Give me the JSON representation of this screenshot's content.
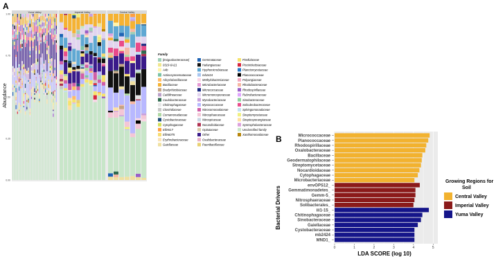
{
  "panel_a": {
    "label": "A",
    "ylabel": "Abundance",
    "yticks": [
      "0.00",
      "0.25",
      "0.50",
      "0.75",
      "1.00"
    ],
    "facets": [
      {
        "name": "Yuma Valley",
        "samples": 29
      },
      {
        "name": "Imperial Valley",
        "samples": 11
      },
      {
        "name": "Central Valley",
        "samples": 7
      }
    ],
    "legend_title": "Family",
    "legend": [
      {
        "name": "[Exiguobacteraceae]",
        "color": "#9ecfb7"
      },
      {
        "name": "0319-6A21",
        "color": "#f0e68c"
      },
      {
        "name": "A4b",
        "color": "#fff4a8"
      },
      {
        "name": "Actinosynnemataceae",
        "color": "#7ac3a5"
      },
      {
        "name": "Alicyclobacillaceae",
        "color": "#ffbb66"
      },
      {
        "name": "Bacillaceae",
        "color": "#f5b232"
      },
      {
        "name": "Bradyrhizobiaceae",
        "color": "#c4a484"
      },
      {
        "name": "Caldilineaceae",
        "color": "#bba0c8"
      },
      {
        "name": "Caulobacteraceae",
        "color": "#2f6b4f"
      },
      {
        "name": "Chitinophagaceae",
        "color": "#e5e5e5"
      },
      {
        "name": "Clostridiaceae",
        "color": "#c7c7c7"
      },
      {
        "name": "Comamonadaceae",
        "color": "#b0d8a4"
      },
      {
        "name": "Cystobacteraceae",
        "color": "#1f4e79"
      },
      {
        "name": "Cytophagaceae",
        "color": "#d4e157"
      },
      {
        "name": "Ellin517",
        "color": "#ff9f40"
      },
      {
        "name": "Ellin6075",
        "color": "#f7dc6f"
      },
      {
        "name": "Erythrobacteraceae",
        "color": "#fbe3b6"
      },
      {
        "name": "Gaiellaceae",
        "color": "#f0e0a0"
      },
      {
        "name": "Gemmataceae",
        "color": "#1e63b5"
      },
      {
        "name": "Haliangiaceae",
        "color": "#111111"
      },
      {
        "name": "Hyphomicrobiaceae",
        "color": "#5fa8d3"
      },
      {
        "name": "mb2424",
        "color": "#a8c6f0"
      },
      {
        "name": "Methylobacteriaceae",
        "color": "#f9d5e5"
      },
      {
        "name": "Microbacteriaceae",
        "color": "#e69ad4"
      },
      {
        "name": "Micrococcaceae",
        "color": "#1a2a80"
      },
      {
        "name": "Micromonosporaceae",
        "color": "#e2d4f0"
      },
      {
        "name": "Mycobacteriaceae",
        "color": "#c9a0dc"
      },
      {
        "name": "Myxococcaceae",
        "color": "#b8b8ff"
      },
      {
        "name": "Nitrosomonadaceae",
        "color": "#d05fa8"
      },
      {
        "name": "Nitrosphaeraceae",
        "color": "#f4c6d6"
      },
      {
        "name": "Nitrospiraceae",
        "color": "#c8d6e5"
      },
      {
        "name": "Nocardioidaceae",
        "color": "#b03050"
      },
      {
        "name": "Opitutaceae",
        "color": "#d8c8a8"
      },
      {
        "name": "Other",
        "color": "#3a1a8a"
      },
      {
        "name": "Oxalobacteraceae",
        "color": "#e8b0c8"
      },
      {
        "name": "Paenibacillaceae",
        "color": "#e8d070"
      },
      {
        "name": "Pirellulaceae",
        "color": "#f6e36b"
      },
      {
        "name": "Piscirickettsiaceae",
        "color": "#d7263d"
      },
      {
        "name": "Planctomycetaceae",
        "color": "#2878c8"
      },
      {
        "name": "Planococcaceae",
        "color": "#000000"
      },
      {
        "name": "Polyangiaceae",
        "color": "#f4a6c0"
      },
      {
        "name": "Rhodobacteraceae",
        "color": "#f7b7a3"
      },
      {
        "name": "Rhodospirillaceae",
        "color": "#9a5fc8"
      },
      {
        "name": "Rubrobacteraceae",
        "color": "#e0a4ff"
      },
      {
        "name": "Sinobacteraceae",
        "color": "#8fd19e"
      },
      {
        "name": "Solirubrobacteraceae",
        "color": "#e94b8a"
      },
      {
        "name": "Sphingomonadaceae",
        "color": "#c2e0f2"
      },
      {
        "name": "Streptomycetaceae",
        "color": "#f0f080"
      },
      {
        "name": "Streptosporangiaceae",
        "color": "#ffe0a0"
      },
      {
        "name": "Syntrophobacteraceae",
        "color": "#dda0dd"
      },
      {
        "name": "Unclassified family",
        "color": "#c8e6c9"
      },
      {
        "name": "Xanthomonadaceae",
        "color": "#b8860b"
      }
    ]
  },
  "panel_b": {
    "label": "B",
    "xlabel": "LDA SCORE (log 10)",
    "ylabel": "Bacterial Drivers",
    "xticks": [
      "0",
      "1",
      "2",
      "3",
      "4",
      "5"
    ],
    "legend_title_line1": "Growing Regions for",
    "legend_title_line2": "Soil",
    "groups": [
      {
        "name": "Central Valley",
        "color": "#f2b22f"
      },
      {
        "name": "Imperial Valley",
        "color": "#8b1a1a"
      },
      {
        "name": "Yuma Valley",
        "color": "#15158a"
      }
    ]
  },
  "chart_data": [
    {
      "type": "bar",
      "subtype": "stacked-relative-abundance",
      "title": "",
      "xlabel": "",
      "ylabel": "Abundance",
      "ylim": [
        0,
        1
      ],
      "facets": [
        "Yuma Valley",
        "Imperial Valley",
        "Central Valley"
      ],
      "series": [
        {
          "name": "Unclassified family",
          "values": {
            "Yuma Valley": 0.5,
            "Imperial Valley": 0.52,
            "Central Valley": 0.3
          }
        },
        {
          "name": "Myxococcaceae",
          "values": {
            "Yuma Valley": 0.08,
            "Imperial Valley": 0.04,
            "Central Valley": 0.15
          }
        },
        {
          "name": "Haliangiaceae",
          "values": {
            "Yuma Valley": 0.01,
            "Imperial Valley": 0.02,
            "Central Valley": 0.1
          }
        },
        {
          "name": "Other",
          "values": {
            "Yuma Valley": 0.13,
            "Imperial Valley": 0.06,
            "Central Valley": 0.08
          }
        },
        {
          "name": "Hyphomicrobiaceae",
          "values": {
            "Yuma Valley": 0.03,
            "Imperial Valley": 0.07,
            "Central Valley": 0.07
          }
        },
        {
          "name": "Bacillaceae",
          "values": {
            "Yuma Valley": 0.04,
            "Imperial Valley": 0.07,
            "Central Valley": 0.06
          }
        }
      ]
    },
    {
      "type": "bar",
      "orientation": "horizontal",
      "title": "",
      "xlabel": "LDA SCORE (log 10)",
      "ylabel": "Bacterial Drivers",
      "xlim": [
        0,
        5
      ],
      "categories": [
        "Micrococcaceae",
        "Planococcaceae",
        "Rhodospirillaceae",
        "Oxalobacteraceae",
        "Bacillaceae",
        "Geodermatophilaceae",
        "Streptomycetaceae",
        "Nocardioidaceae",
        "Cytophagaceae",
        "Microbacteriaceae",
        "envOPS12_",
        "Gemmatimonadetes_",
        "Gemm-5_",
        "Nitrosphaeraceae",
        "Solibacterales_",
        "iii1-15_",
        "Chitinophagaceae",
        "Sinobacteraceae",
        "Gaiellaceae",
        "Cystobacteraceae",
        "mb2424",
        "MND1_"
      ],
      "values": [
        4.82,
        4.75,
        4.65,
        4.6,
        4.45,
        4.42,
        4.38,
        4.3,
        4.22,
        4.05,
        4.32,
        4.1,
        4.1,
        4.05,
        4.0,
        4.78,
        4.45,
        4.38,
        4.22,
        4.05,
        4.05,
        4.05
      ],
      "groups": [
        "Central Valley",
        "Central Valley",
        "Central Valley",
        "Central Valley",
        "Central Valley",
        "Central Valley",
        "Central Valley",
        "Central Valley",
        "Central Valley",
        "Central Valley",
        "Imperial Valley",
        "Imperial Valley",
        "Imperial Valley",
        "Imperial Valley",
        "Imperial Valley",
        "Yuma Valley",
        "Yuma Valley",
        "Yuma Valley",
        "Yuma Valley",
        "Yuma Valley",
        "Yuma Valley",
        "Yuma Valley"
      ]
    }
  ]
}
